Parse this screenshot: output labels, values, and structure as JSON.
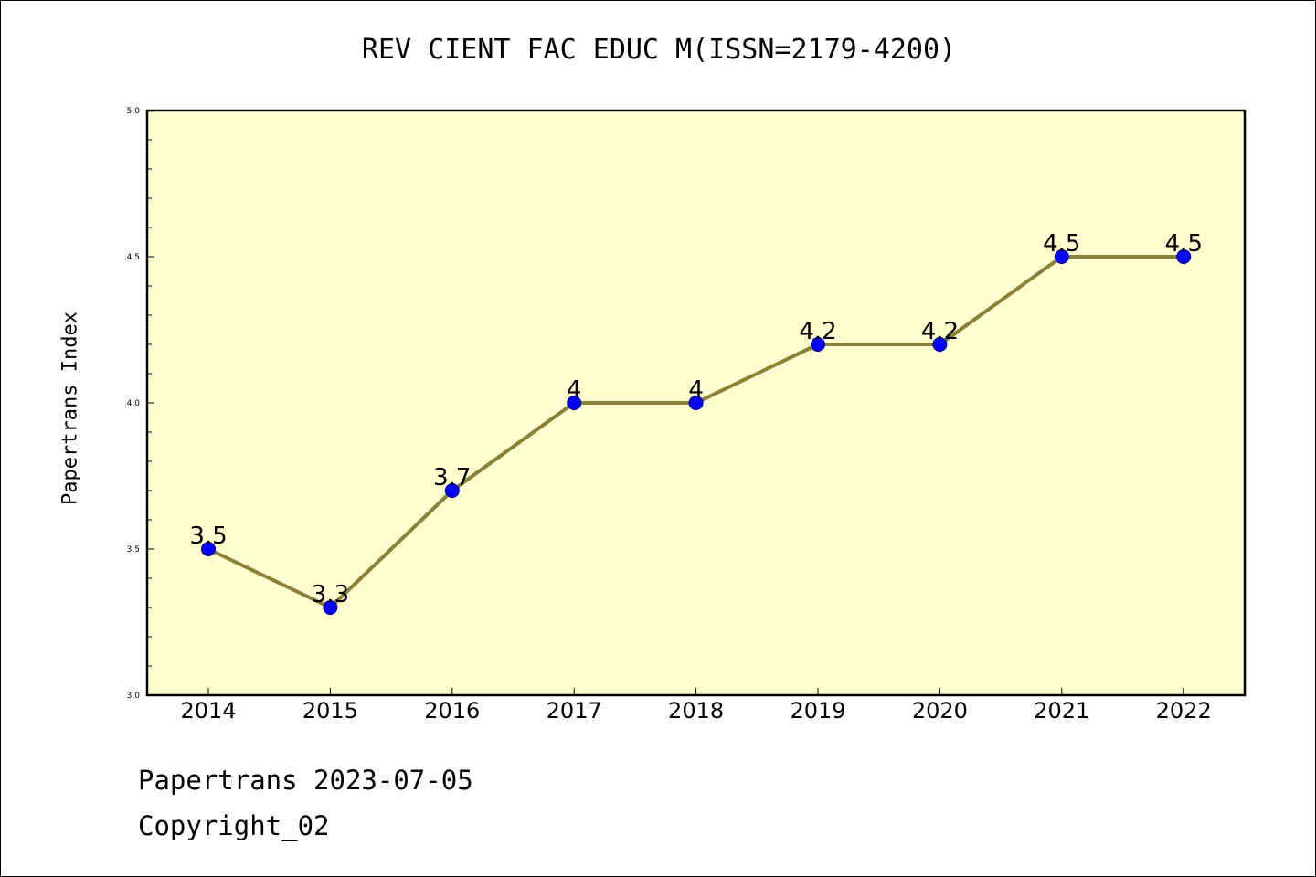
{
  "chart_data": {
    "type": "line",
    "title": "REV CIENT FAC EDUC M(ISSN=2179-4200)",
    "xlabel": "",
    "ylabel": "Papertrans Index",
    "categories": [
      "2014",
      "2015",
      "2016",
      "2017",
      "2018",
      "2019",
      "2020",
      "2021",
      "2022"
    ],
    "values": [
      3.5,
      3.3,
      3.7,
      4.0,
      4.0,
      4.2,
      4.2,
      4.5,
      4.5
    ],
    "data_labels": [
      "3.5",
      "3.3",
      "3.7",
      "4",
      "4",
      "4.2",
      "4.2",
      "4.5",
      "4.5"
    ],
    "ylim": [
      3.0,
      5.0
    ],
    "y_ticks": [
      "3.0",
      "3.5",
      "4.0",
      "4.5",
      "5.0"
    ],
    "grid": false,
    "colors": {
      "plot_background": "#ffffd0",
      "line": "#8b8038",
      "marker": "#0000ff"
    }
  },
  "footer": {
    "date_line": "Papertrans 2023-07-05",
    "copyright_line": "Copyright_02"
  }
}
